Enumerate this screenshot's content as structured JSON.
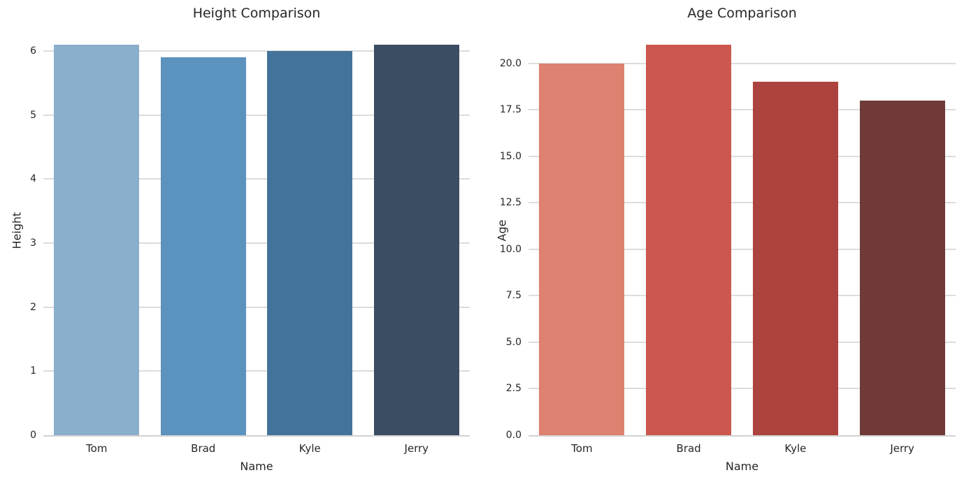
{
  "figure": {
    "background": "#ffffff",
    "text_color": "#262626",
    "grid_color": "#dcdcdc",
    "baseline_color": "#d2d2d2"
  },
  "chart_data": [
    {
      "type": "bar",
      "title": "Height Comparison",
      "xlabel": "Name",
      "ylabel": "Height",
      "categories": [
        "Tom",
        "Brad",
        "Kyle",
        "Jerry"
      ],
      "values": [
        6.1,
        5.9,
        6.0,
        6.1
      ],
      "bar_colors": [
        "#8aafcb",
        "#5c92be",
        "#44739a",
        "#3a4d62"
      ],
      "yticks": [
        0,
        1,
        2,
        3,
        4,
        5,
        6
      ],
      "ytick_labels": [
        "0",
        "1",
        "2",
        "3",
        "4",
        "5",
        "6"
      ],
      "ylim": [
        0,
        6.405
      ],
      "grid": true,
      "legend": "none"
    },
    {
      "type": "bar",
      "title": "Age Comparison",
      "xlabel": "Name",
      "ylabel": "Age",
      "categories": [
        "Tom",
        "Brad",
        "Kyle",
        "Jerry"
      ],
      "values": [
        20,
        21,
        19,
        18
      ],
      "bar_colors": [
        "#dd8171",
        "#cc574e",
        "#ad433e",
        "#6f3a37"
      ],
      "yticks": [
        0,
        2.5,
        5,
        7.5,
        10,
        12.5,
        15,
        17.5,
        20
      ],
      "ytick_labels": [
        "0.0",
        "2.5",
        "5.0",
        "7.5",
        "10.0",
        "12.5",
        "15.0",
        "17.5",
        "20.0"
      ],
      "ylim": [
        0,
        22.05
      ],
      "grid": true,
      "legend": "none"
    }
  ]
}
